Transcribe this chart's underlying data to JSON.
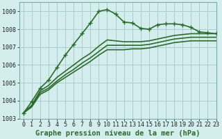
{
  "background_color": "#d4eeed",
  "grid_color": "#aacfcf",
  "line_color": "#2d6a2d",
  "title": "Graphe pression niveau de la mer (hPa)",
  "xlim": [
    -0.5,
    23
  ],
  "ylim": [
    1003,
    1009.5
  ],
  "yticks": [
    1003,
    1004,
    1005,
    1006,
    1007,
    1008,
    1009
  ],
  "xticks": [
    0,
    1,
    2,
    3,
    4,
    5,
    6,
    7,
    8,
    9,
    10,
    11,
    12,
    13,
    14,
    15,
    16,
    17,
    18,
    19,
    20,
    21,
    22,
    23
  ],
  "series1_x": [
    0,
    1,
    2,
    3,
    4,
    5,
    6,
    7,
    8,
    9,
    10,
    11,
    12,
    13,
    14,
    15,
    16,
    17,
    18,
    19,
    20,
    21,
    22,
    23
  ],
  "series1_y": [
    1003.3,
    1003.95,
    1004.7,
    1005.15,
    1005.85,
    1006.55,
    1007.15,
    1007.75,
    1008.35,
    1009.0,
    1009.1,
    1008.85,
    1008.4,
    1008.35,
    1008.05,
    1008.0,
    1008.25,
    1008.3,
    1008.3,
    1008.25,
    1008.1,
    1007.85,
    1007.8,
    1007.75
  ],
  "series2_x": [
    0,
    1,
    2,
    3,
    4,
    5,
    6,
    7,
    8,
    9,
    10,
    11,
    12,
    13,
    14,
    15,
    16,
    17,
    18,
    19,
    20,
    21,
    22,
    23
  ],
  "series2_y": [
    1003.3,
    1003.75,
    1004.55,
    1004.85,
    1005.3,
    1005.65,
    1006.0,
    1006.35,
    1006.65,
    1007.05,
    1007.4,
    1007.35,
    1007.3,
    1007.3,
    1007.3,
    1007.35,
    1007.45,
    1007.55,
    1007.65,
    1007.7,
    1007.75,
    1007.75,
    1007.75,
    1007.75
  ],
  "series3_x": [
    0,
    1,
    2,
    3,
    4,
    5,
    6,
    7,
    8,
    9,
    10,
    11,
    12,
    13,
    14,
    15,
    16,
    17,
    18,
    19,
    20,
    21,
    22,
    23
  ],
  "series3_y": [
    1003.3,
    1003.7,
    1004.45,
    1004.7,
    1005.1,
    1005.45,
    1005.75,
    1006.1,
    1006.4,
    1006.75,
    1007.1,
    1007.1,
    1007.1,
    1007.1,
    1007.1,
    1007.15,
    1007.25,
    1007.35,
    1007.45,
    1007.5,
    1007.55,
    1007.55,
    1007.55,
    1007.55
  ],
  "series4_x": [
    0,
    1,
    2,
    3,
    4,
    5,
    6,
    7,
    8,
    9,
    10,
    11,
    12,
    13,
    14,
    15,
    16,
    17,
    18,
    19,
    20,
    21,
    22,
    23
  ],
  "series4_y": [
    1003.3,
    1003.65,
    1004.35,
    1004.6,
    1005.0,
    1005.3,
    1005.6,
    1005.9,
    1006.2,
    1006.55,
    1006.85,
    1006.85,
    1006.85,
    1006.9,
    1006.9,
    1006.95,
    1007.05,
    1007.15,
    1007.25,
    1007.3,
    1007.35,
    1007.35,
    1007.35,
    1007.35
  ],
  "marker": "+",
  "marker_size": 5,
  "linewidth": 1.2,
  "title_fontsize": 7.5,
  "tick_fontsize": 6.0
}
